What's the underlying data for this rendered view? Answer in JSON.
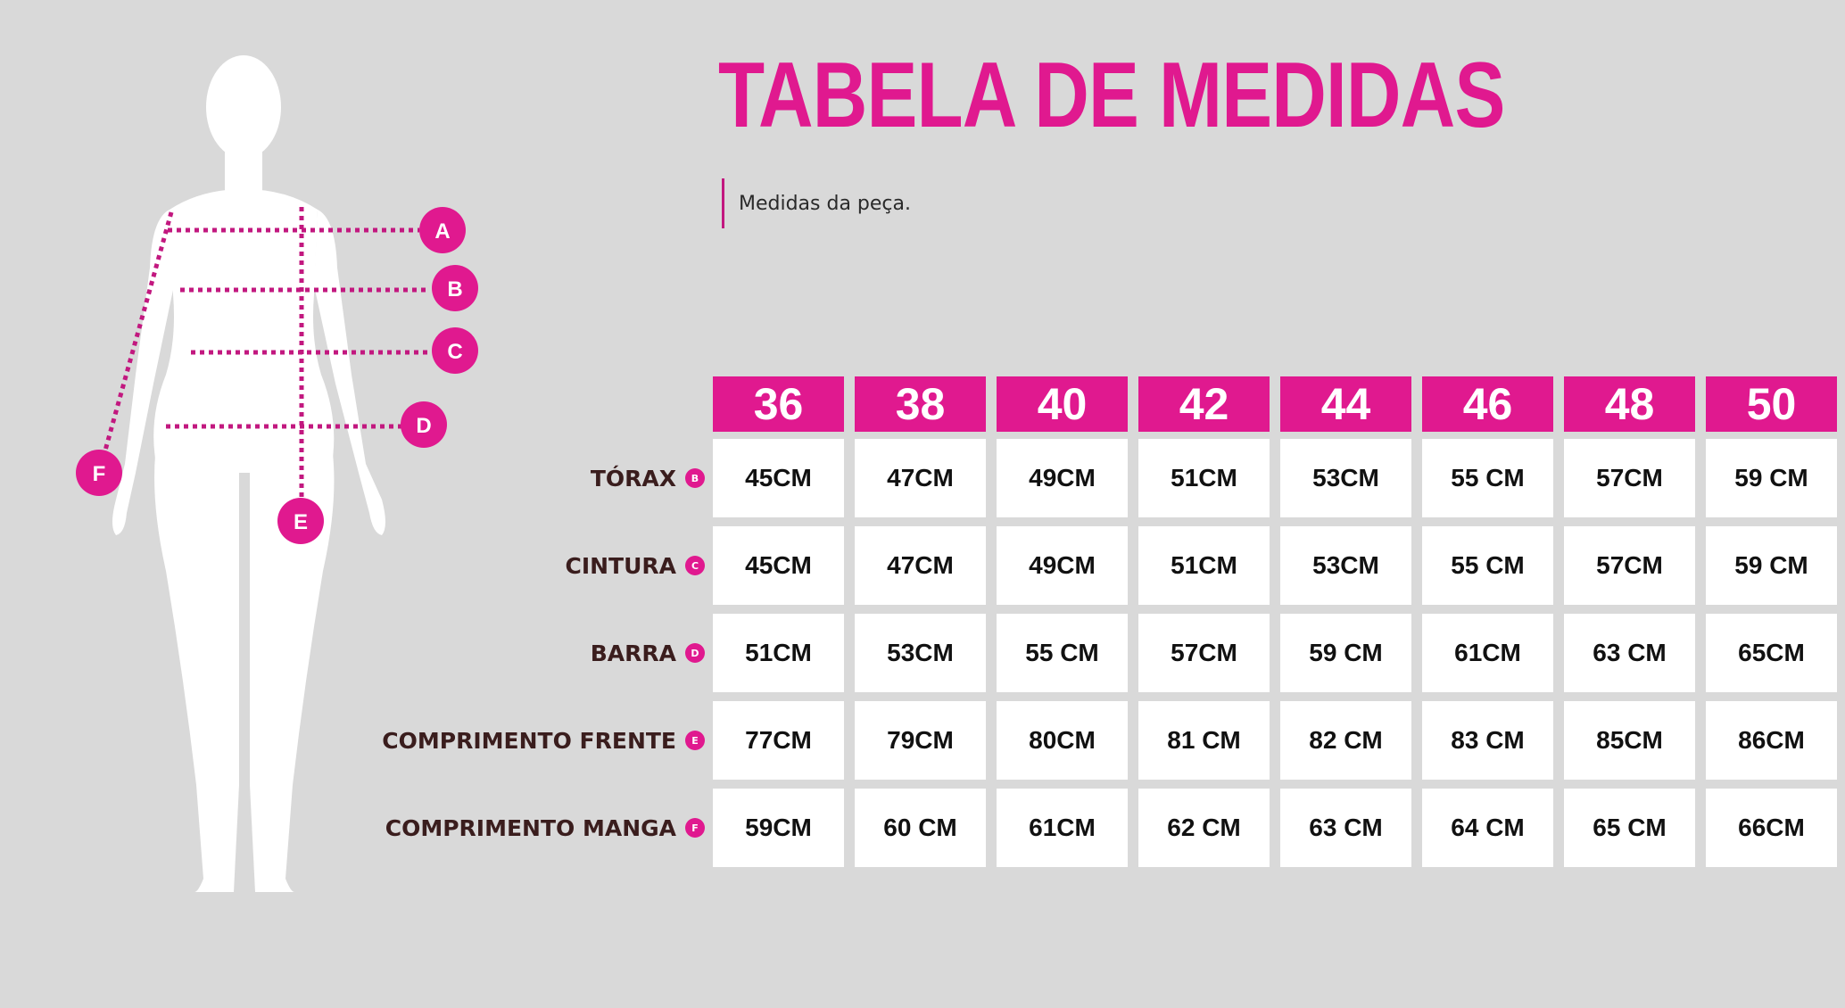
{
  "title": "TABELA DE MEDIDAS",
  "subtitle": "Medidas da peça.",
  "colors": {
    "accent": "#e0198f",
    "background": "#d9d9d9",
    "label_text": "#3a1d1d"
  },
  "figure": {
    "markers": [
      {
        "letter": "A"
      },
      {
        "letter": "B"
      },
      {
        "letter": "C"
      },
      {
        "letter": "D"
      },
      {
        "letter": "E"
      },
      {
        "letter": "F"
      }
    ]
  },
  "table": {
    "sizes": [
      "36",
      "38",
      "40",
      "42",
      "44",
      "46",
      "48",
      "50"
    ],
    "rows": [
      {
        "label": "TÓRAX",
        "badge": "B",
        "values": [
          "45CM",
          "47CM",
          "49CM",
          "51CM",
          "53CM",
          "55 CM",
          "57CM",
          "59 CM"
        ]
      },
      {
        "label": "CINTURA",
        "badge": "C",
        "values": [
          "45CM",
          "47CM",
          "49CM",
          "51CM",
          "53CM",
          "55 CM",
          "57CM",
          "59 CM"
        ]
      },
      {
        "label": "BARRA",
        "badge": "D",
        "values": [
          "51CM",
          "53CM",
          "55 CM",
          "57CM",
          "59 CM",
          "61CM",
          "63 CM",
          "65CM"
        ]
      },
      {
        "label": "COMPRIMENTO FRENTE",
        "badge": "E",
        "values": [
          "77CM",
          "79CM",
          "80CM",
          "81 CM",
          "82 CM",
          "83 CM",
          "85CM",
          "86CM"
        ]
      },
      {
        "label": "COMPRIMENTO MANGA",
        "badge": "F",
        "values": [
          "59CM",
          "60 CM",
          "61CM",
          "62 CM",
          "63 CM",
          "64 CM",
          "65  CM",
          "66CM"
        ]
      }
    ]
  }
}
